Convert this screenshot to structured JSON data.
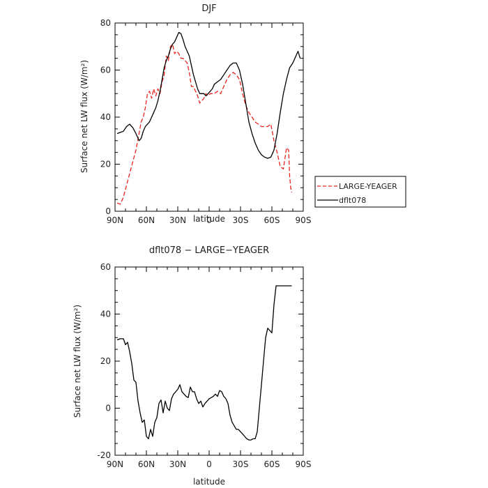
{
  "chart_data": [
    {
      "type": "line",
      "title": "DJF",
      "xlabel": "latitude",
      "ylabel": "Surface net LW flux (W/m²)",
      "x_ticks": [
        "90N",
        "60N",
        "30N",
        "0",
        "30S",
        "60S",
        "90S"
      ],
      "x_tick_values": [
        90,
        60,
        30,
        0,
        -30,
        -60,
        -90
      ],
      "xlim": [
        90,
        -90
      ],
      "ylim": [
        0,
        80
      ],
      "y_ticks": [
        0,
        20,
        40,
        60,
        80
      ],
      "legend": {
        "placement": "right-of-plot",
        "entries": [
          "LARGE-YEAGER",
          "dflt078"
        ]
      },
      "series": [
        {
          "name": "LARGE-YEAGER",
          "color": "#e8241f",
          "dash": "dashed",
          "x": [
            88,
            85,
            82,
            79,
            76,
            73,
            70,
            67,
            65,
            63,
            61,
            59,
            57,
            55,
            53,
            51,
            49,
            47,
            45,
            43,
            41,
            39,
            37,
            35,
            33,
            31,
            29,
            27,
            25,
            23,
            21,
            19,
            17,
            15,
            13,
            11,
            9,
            7,
            5,
            3,
            1,
            -1,
            -3,
            -5,
            -8,
            -11,
            -14,
            -17,
            -20,
            -23,
            -26,
            -29,
            -32,
            -35,
            -38,
            -41,
            -44,
            -47,
            -50,
            -53,
            -56,
            -59,
            -62,
            -65,
            -68,
            -71,
            -74,
            -76,
            -77,
            -78,
            -79
          ],
          "y": [
            3.5,
            3,
            6,
            11,
            16,
            21,
            26,
            33,
            38,
            40,
            44,
            50,
            51,
            48,
            52,
            49,
            52,
            50,
            55,
            58,
            66,
            64,
            70,
            71,
            67,
            68,
            67,
            65,
            65,
            64,
            63,
            59,
            53,
            53,
            51,
            49,
            46,
            47,
            48,
            50,
            49,
            50,
            50,
            50,
            51,
            50,
            53,
            56,
            58,
            59,
            58,
            56,
            50,
            45,
            42,
            40,
            38,
            37,
            36,
            36,
            36,
            37,
            30,
            25,
            19,
            18,
            27,
            26,
            15,
            10,
            8
          ]
        },
        {
          "name": "dflt078",
          "color": "#000000",
          "dash": "solid",
          "x": [
            88,
            85,
            82,
            79,
            76,
            73,
            70,
            67,
            65,
            63,
            61,
            59,
            57,
            55,
            53,
            51,
            49,
            47,
            45,
            43,
            41,
            39,
            37,
            35,
            33,
            31,
            29,
            27,
            25,
            23,
            21,
            19,
            17,
            15,
            13,
            11,
            9,
            7,
            5,
            3,
            1,
            -1,
            -3,
            -5,
            -8,
            -11,
            -14,
            -17,
            -20,
            -23,
            -26,
            -29,
            -32,
            -35,
            -38,
            -41,
            -44,
            -47,
            -50,
            -53,
            -56,
            -59,
            -62,
            -65,
            -68,
            -71,
            -74,
            -77,
            -80,
            -83,
            -85,
            -87
          ],
          "y": [
            33,
            33.5,
            34,
            36,
            37,
            35.5,
            33,
            30,
            31,
            34,
            36,
            37,
            38,
            40,
            42,
            44,
            47,
            51,
            56,
            61,
            64,
            66,
            69,
            71,
            72,
            74,
            76,
            75.5,
            73,
            70,
            68,
            66,
            62,
            58,
            55,
            52,
            50,
            50,
            50,
            49,
            50,
            51,
            52,
            54,
            55,
            56,
            58,
            60,
            62,
            63,
            63,
            60,
            54,
            46,
            38,
            33,
            29,
            26,
            24,
            23,
            22.5,
            23,
            26,
            33,
            42,
            50,
            56,
            61,
            63,
            66,
            68,
            65
          ]
        }
      ]
    },
    {
      "type": "line",
      "title": "dflt078 − LARGE−YEAGER",
      "xlabel": "latitude",
      "ylabel": "Surface net LW flux (W/m²)",
      "x_ticks": [
        "90N",
        "60N",
        "30N",
        "0",
        "30S",
        "60S",
        "90S"
      ],
      "x_tick_values": [
        90,
        60,
        30,
        0,
        -30,
        -60,
        -90
      ],
      "xlim": [
        90,
        -90
      ],
      "ylim": [
        -20,
        60
      ],
      "y_ticks": [
        -20,
        0,
        20,
        40,
        60
      ],
      "series": [
        {
          "color": "#000000",
          "dash": "solid",
          "x": [
            88,
            85,
            82,
            80,
            78,
            76,
            74,
            72,
            70,
            68,
            66,
            64,
            62,
            60,
            58,
            56,
            54,
            52,
            50,
            48,
            46,
            44,
            42,
            40,
            38,
            36,
            34,
            32,
            30,
            28,
            26,
            24,
            22,
            20,
            18,
            16,
            14,
            12,
            10,
            8,
            6,
            4,
            2,
            0,
            -2,
            -4,
            -6,
            -8,
            -10,
            -12,
            -14,
            -16,
            -18,
            -20,
            -22,
            -24,
            -26,
            -28,
            -30,
            -32,
            -34,
            -36,
            -38,
            -40,
            -42,
            -44,
            -46,
            -48,
            -50,
            -52,
            -54,
            -56,
            -58,
            -60,
            -62,
            -64,
            -66,
            -68,
            -70,
            -72,
            -74,
            -76,
            -78,
            -79
          ],
          "y": [
            29,
            29.5,
            29.5,
            27,
            28,
            24,
            19,
            12,
            11,
            3,
            -2,
            -6,
            -5,
            -12,
            -13,
            -9,
            -12,
            -6,
            -4,
            2,
            3.5,
            -2,
            3,
            0,
            -1,
            4,
            6,
            7,
            8,
            10,
            7,
            6,
            5,
            4.5,
            9,
            7,
            7,
            4,
            2,
            3,
            0.5,
            2,
            3,
            4,
            4.5,
            5,
            6,
            5,
            7.5,
            7,
            5,
            4,
            2,
            -3,
            -6,
            -7.5,
            -9,
            -9,
            -10,
            -11,
            -12,
            -13,
            -13.5,
            -13.5,
            -13,
            -13,
            -10,
            0,
            10,
            20,
            30,
            34,
            33,
            32,
            44,
            52,
            52,
            52,
            52,
            52,
            52,
            52,
            52,
            52
          ]
        }
      ]
    }
  ]
}
